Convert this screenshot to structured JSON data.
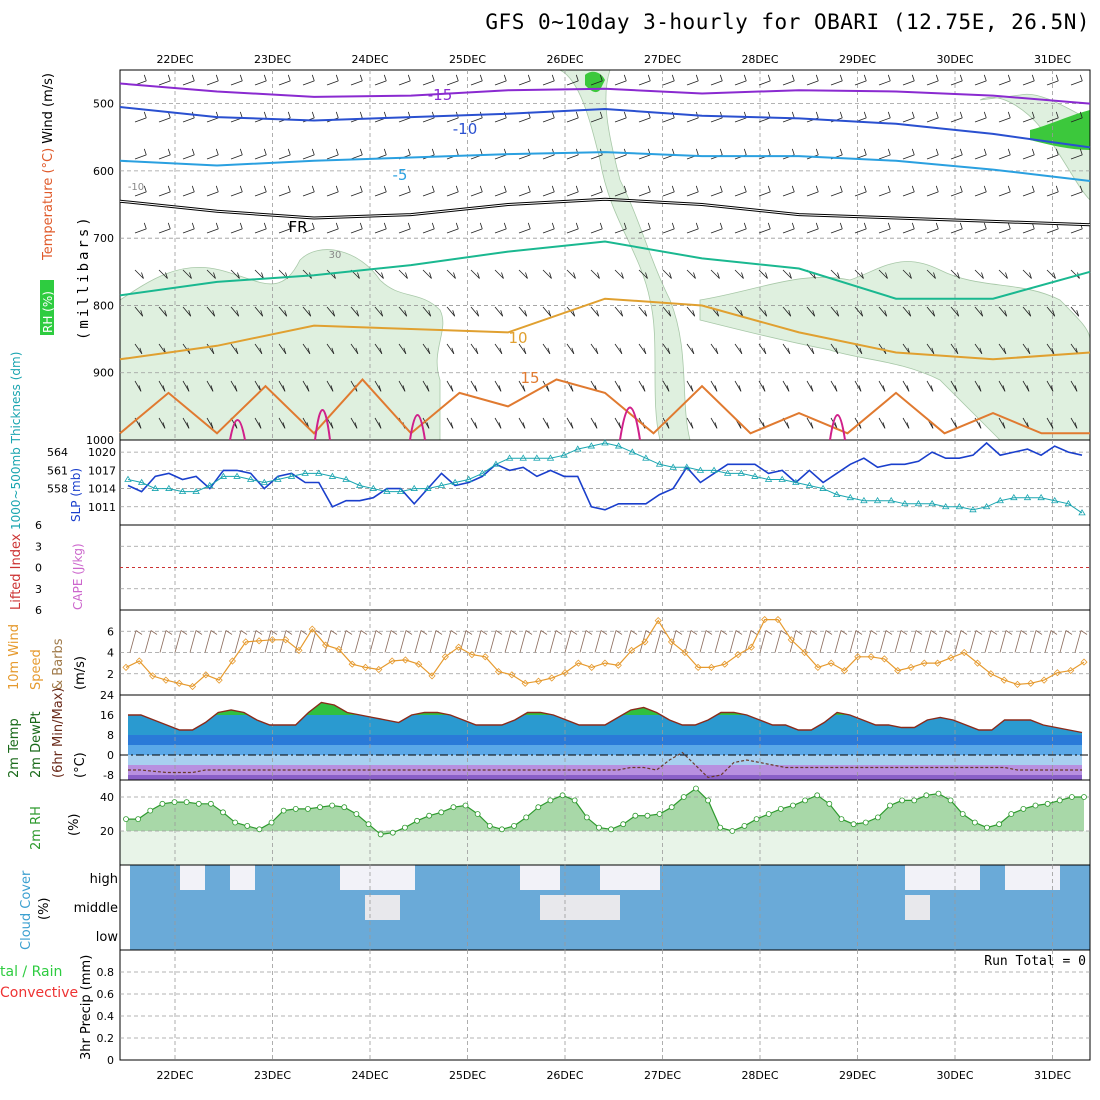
{
  "title": "GFS 0~10day 3-hourly for OBARI (12.75E, 26.5N)",
  "date_labels": [
    "22DEC",
    "23DEC",
    "24DEC",
    "25DEC",
    "26DEC",
    "27DEC",
    "28DEC",
    "29DEC",
    "30DEC",
    "31DEC"
  ],
  "colors": {
    "rh_green": "#2ecc40",
    "temp_label": "#e05a2a",
    "wind_label": "#000000",
    "thickness": "#1aa5b0",
    "slp": "#1a3fcc",
    "lifted": "#cc3333",
    "cape": "#cc66cc",
    "wind10m": "#e69a2e",
    "temp2m_label": "#1a6a1a",
    "rh2m": "#2e9a2e",
    "cloud_label": "#3ca0d0",
    "precip_green": "#2ecc40",
    "precip_red": "#ee3333",
    "cloud_fill": "#6aaad8",
    "cloud_clear": "#f2f2f8"
  },
  "chart_data": [
    {
      "panel": "upper_air",
      "type": "contour",
      "ylabel_parts": {
        "rh": "RH (%)",
        "temp": "Temperature (°C)",
        "wind": "Wind (m/s)",
        "pressure": "(millibars)"
      },
      "y_ticks": [
        500,
        600,
        700,
        800,
        900,
        1000
      ],
      "ylim": [
        450,
        1000
      ],
      "isotherm_labels": [
        "-15",
        "-10",
        "-5",
        "FR",
        "10",
        "15",
        "-10",
        "30"
      ],
      "isotherms": [
        {
          "name": "-15",
          "color": "#8a2ad0",
          "x": [
            0,
            1,
            2,
            3,
            4,
            5,
            6,
            7,
            8,
            9,
            10
          ],
          "y": [
            470,
            482,
            490,
            488,
            480,
            478,
            485,
            480,
            482,
            488,
            500
          ]
        },
        {
          "name": "-10",
          "color": "#2a50d0",
          "x": [
            0,
            1,
            2,
            3,
            4,
            5,
            6,
            7,
            8,
            9,
            10
          ],
          "y": [
            505,
            520,
            525,
            520,
            515,
            508,
            518,
            522,
            530,
            545,
            565
          ]
        },
        {
          "name": "-5",
          "color": "#2aa0e0",
          "x": [
            0,
            1,
            2,
            3,
            4,
            5,
            6,
            7,
            8,
            9,
            10
          ],
          "y": [
            585,
            592,
            585,
            580,
            575,
            572,
            578,
            578,
            585,
            598,
            615
          ]
        },
        {
          "name": "FR",
          "color": "#000000",
          "x": [
            0,
            1,
            2,
            3,
            4,
            5,
            6,
            7,
            8,
            9,
            10
          ],
          "y": [
            645,
            660,
            670,
            665,
            650,
            642,
            650,
            665,
            670,
            675,
            680
          ]
        },
        {
          "name": "5",
          "color": "#1ab890",
          "x": [
            0,
            1,
            2,
            3,
            4,
            5,
            6,
            7,
            8,
            9,
            10
          ],
          "y": [
            785,
            765,
            755,
            740,
            720,
            705,
            730,
            745,
            790,
            790,
            750
          ]
        },
        {
          "name": "10",
          "color": "#e0a030",
          "x": [
            0,
            1,
            2,
            3,
            4,
            5,
            6,
            7,
            8,
            9,
            10
          ],
          "y": [
            880,
            860,
            830,
            835,
            840,
            790,
            800,
            840,
            870,
            880,
            870
          ]
        },
        {
          "name": "15",
          "color": "#e07a30",
          "x": [
            0,
            0.5,
            1,
            1.5,
            2,
            2.5,
            3,
            3.5,
            4,
            4.5,
            5,
            5.5,
            6,
            6.5,
            7,
            7.5,
            8,
            8.5,
            9,
            9.5,
            10
          ],
          "y": [
            990,
            930,
            990,
            920,
            990,
            910,
            990,
            930,
            950,
            910,
            930,
            990,
            920,
            990,
            960,
            990,
            930,
            990,
            960,
            990,
            990
          ]
        }
      ]
    },
    {
      "panel": "thickness_slp",
      "type": "line",
      "ylabel_left": "1000~500mb Thickness (dm)",
      "ylabel_right": "SLP (mb)",
      "left_ticks": [
        558,
        561,
        564
      ],
      "right_ticks": [
        1011,
        1014,
        1017,
        1020
      ],
      "ylim_slp": [
        1008,
        1022
      ],
      "series": [
        {
          "name": "SLP",
          "color": "#1a3fcc",
          "values": [
            1014.5,
            1013.5,
            1016,
            1016.5,
            1015.5,
            1016,
            1014,
            1017,
            1017,
            1016.5,
            1014,
            1016,
            1016.5,
            1015,
            1015,
            1011,
            1012,
            1012,
            1012.5,
            1014,
            1014,
            1011.5,
            1014,
            1016.5,
            1014.5,
            1015,
            1016,
            1018,
            1017,
            1017.5,
            1016,
            1017,
            1016,
            1016,
            1011,
            1010.5,
            1011.5,
            1011.5,
            1011.5,
            1013,
            1014,
            1017.5,
            1015,
            1016.5,
            1018,
            1018,
            1018,
            1016.5,
            1017,
            1015,
            1017,
            1015,
            1016.5,
            1018,
            1019,
            1017.5,
            1018,
            1018,
            1018.5,
            1020,
            1019,
            1019,
            1019.5,
            1021.5,
            1019.5,
            1020,
            1020.5,
            1019.5,
            1021,
            1020,
            1019.5
          ]
        },
        {
          "name": "Thickness",
          "color": "#1aa5b0",
          "values": [
            1015.5,
            1015,
            1014,
            1014,
            1013.5,
            1013.5,
            1014.5,
            1016,
            1016,
            1015.5,
            1015,
            1015.5,
            1016,
            1016.5,
            1016.5,
            1016,
            1015.5,
            1014.5,
            1014,
            1013.5,
            1013.5,
            1014,
            1014,
            1014.5,
            1015,
            1015.5,
            1016.5,
            1018,
            1019,
            1019,
            1019,
            1019,
            1019.5,
            1020.5,
            1021,
            1021.5,
            1021,
            1020,
            1019,
            1018,
            1017.5,
            1017.5,
            1017,
            1017,
            1016.5,
            1016.5,
            1016,
            1015.5,
            1015.5,
            1015,
            1014.5,
            1014,
            1013,
            1012.5,
            1012,
            1012,
            1012,
            1011.5,
            1011.5,
            1011.5,
            1011,
            1011,
            1010.5,
            1011,
            1012,
            1012.5,
            1012.5,
            1012.5,
            1012,
            1011.5,
            1010
          ]
        }
      ]
    },
    {
      "panel": "lifted_cape",
      "type": "line",
      "ylabel_left": "Lifted Index",
      "ylabel_right": "CAPE (J/kg)",
      "y_ticks": [
        -6,
        -3,
        0,
        3,
        6
      ],
      "tick_labels": [
        "6",
        "3",
        "0",
        "3",
        "6"
      ],
      "ylim": [
        -6,
        6
      ],
      "reference_line": 0
    },
    {
      "panel": "wind10m",
      "type": "line",
      "ylabel": "10m Wind Speed & Barbs (m/s)",
      "ylabel_parts": [
        "10m Wind",
        "Speed",
        "& Barbs",
        "(m/s)"
      ],
      "y_ticks": [
        2,
        4,
        6
      ],
      "ylim": [
        0,
        8
      ],
      "series": [
        {
          "name": "10m Wind Speed",
          "color": "#e69a2e",
          "values": [
            2.6,
            3.2,
            1.8,
            1.4,
            1.1,
            0.8,
            1.9,
            1.4,
            3.2,
            5.0,
            5.1,
            5.2,
            5.2,
            4.2,
            6.2,
            4.7,
            4.3,
            2.9,
            2.6,
            2.4,
            3.2,
            3.3,
            2.9,
            1.8,
            3.6,
            4.5,
            3.8,
            3.6,
            2.2,
            1.9,
            1.1,
            1.3,
            1.6,
            2.1,
            3.0,
            2.6,
            3.0,
            2.8,
            4.2,
            5.0,
            7.0,
            5.0,
            4.0,
            2.6,
            2.6,
            2.9,
            3.8,
            4.5,
            7.1,
            7.1,
            5.2,
            4.0,
            2.6,
            3.0,
            2.3,
            3.6,
            3.6,
            3.4,
            2.3,
            2.6,
            3.0,
            3.0,
            3.5,
            4.0,
            3.0,
            2.0,
            1.4,
            1.0,
            1.1,
            1.4,
            2.1,
            2.3,
            3.1
          ]
        }
      ]
    },
    {
      "panel": "temp2m",
      "type": "area",
      "ylabel_parts": [
        "2m Temp",
        "2m DewPt",
        "(6hr Min/Max)",
        "(°C)"
      ],
      "y_ticks": [
        -8,
        0,
        8,
        16,
        24
      ],
      "ylim": [
        -10,
        24
      ],
      "series": [
        {
          "name": "2m Temp",
          "color": "#8a2a1a",
          "values": [
            16,
            16,
            14,
            12,
            10,
            10,
            13,
            17,
            18,
            17,
            14,
            12,
            12,
            12,
            17,
            21,
            20,
            17,
            16,
            15,
            14,
            13,
            16,
            17,
            17,
            16,
            14,
            12,
            12,
            12,
            14,
            17,
            17,
            16,
            14,
            12,
            12,
            12,
            15,
            18,
            19,
            17,
            14,
            12,
            12,
            14,
            17,
            17,
            16,
            14,
            12,
            12,
            10,
            10,
            13,
            17,
            16,
            14,
            12,
            12,
            11,
            11,
            14,
            15,
            14,
            12,
            10,
            10,
            14,
            14,
            14,
            12,
            11,
            10,
            9
          ]
        },
        {
          "name": "2m DewPt",
          "color": "#6a3a2a",
          "values": [
            -6,
            -6,
            -6.5,
            -7,
            -7,
            -7,
            -6,
            -6,
            -6,
            -6,
            -6,
            -6,
            -6,
            -6,
            -6,
            -6,
            -6,
            -6,
            -6,
            -6,
            -6,
            -6,
            -6,
            -6,
            -6,
            -6,
            -6,
            -6,
            -6,
            -6,
            -6,
            -6,
            -6,
            -6,
            -6,
            -6,
            -6,
            -6,
            -6,
            -5,
            -5,
            -6,
            -2,
            1,
            -4,
            -9,
            -8,
            -3,
            -2,
            -3,
            -4,
            -5,
            -5,
            -5,
            -5,
            -5,
            -5,
            -5,
            -5,
            -5,
            -5,
            -5,
            -5,
            -5,
            -5,
            -5,
            -5,
            -5,
            -5,
            -6,
            -6,
            -6,
            -6,
            -6,
            -6
          ]
        }
      ]
    },
    {
      "panel": "rh2m",
      "type": "area",
      "ylabel": "2m RH",
      "ylabel_unit": "(%)",
      "y_ticks": [
        20,
        40
      ],
      "ylim": [
        0,
        50
      ],
      "series": [
        {
          "name": "2m RH",
          "color": "#2e9a2e",
          "values": [
            27,
            27,
            32,
            36,
            37,
            37,
            36,
            36,
            31,
            25,
            23,
            21,
            25,
            32,
            33,
            33,
            34,
            35,
            34,
            30,
            24,
            18,
            19,
            22,
            26,
            29,
            31,
            34,
            35,
            30,
            23,
            21,
            23,
            28,
            34,
            38,
            41,
            38,
            28,
            22,
            21,
            24,
            29,
            29,
            30,
            34,
            40,
            45,
            38,
            22,
            20,
            23,
            27,
            30,
            33,
            35,
            38,
            41,
            36,
            27,
            24,
            25,
            28,
            35,
            38,
            38,
            41,
            42,
            38,
            30,
            25,
            22,
            24,
            30,
            33,
            35,
            36,
            38,
            40,
            40
          ]
        }
      ]
    },
    {
      "panel": "cloud",
      "type": "heatmap",
      "ylabel": "Cloud Cover",
      "ylabel_unit": "(%)",
      "rows": [
        "high",
        "middle",
        "low"
      ]
    },
    {
      "panel": "precip",
      "type": "bar",
      "ylabel_left_parts": [
        "tal / Rain",
        "Convective"
      ],
      "ylabel": "3hr Precip (mm)",
      "y_ticks": [
        0,
        0.2,
        0.4,
        0.6,
        0.8
      ],
      "ylim": [
        0,
        1.0
      ],
      "run_total_label": "Run Total = 0",
      "values": []
    }
  ]
}
